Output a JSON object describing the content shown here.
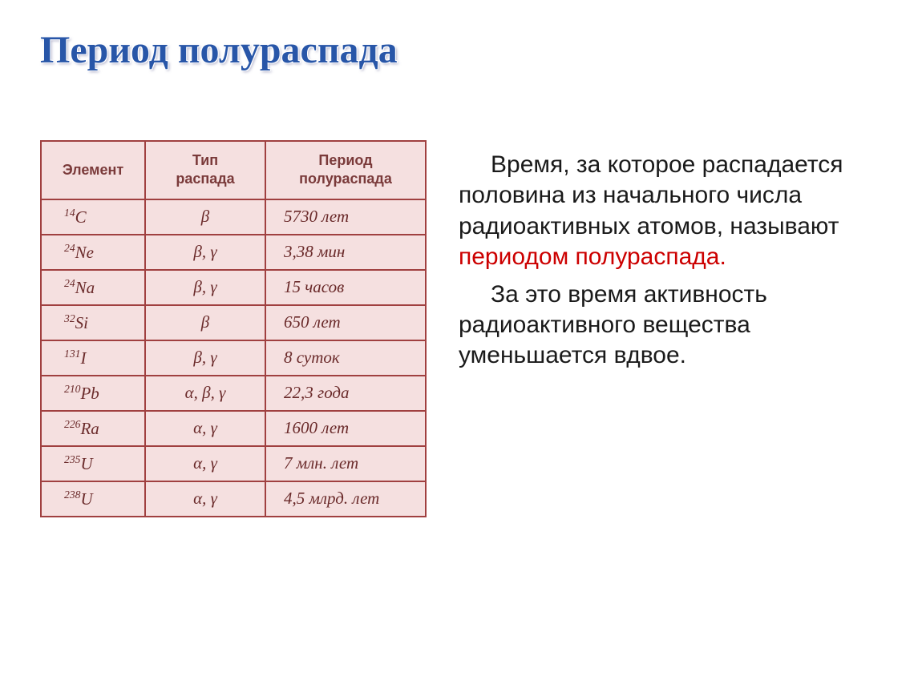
{
  "title": "Период полураспада",
  "table": {
    "columns": [
      "Элемент",
      "Тип\nраспада",
      "Период\nполураспада"
    ],
    "rows": [
      {
        "mass": "14",
        "sym": "C",
        "decay": "β",
        "period": "5730 лет"
      },
      {
        "mass": "24",
        "sym": "Ne",
        "decay": "β, γ",
        "period": "3,38 мин"
      },
      {
        "mass": "24",
        "sym": "Na",
        "decay": "β, γ",
        "period": "15 часов"
      },
      {
        "mass": "32",
        "sym": "Si",
        "decay": "β",
        "period": "650 лет"
      },
      {
        "mass": "131",
        "sym": "I",
        "decay": "β, γ",
        "period": "8 суток"
      },
      {
        "mass": "210",
        "sym": "Pb",
        "decay": "α, β, γ",
        "period": "22,3 года"
      },
      {
        "mass": "226",
        "sym": "Ra",
        "decay": "α, γ",
        "period": "1600 лет"
      },
      {
        "mass": "235",
        "sym": "U",
        "decay": "α, γ",
        "period": "7 млн. лет"
      },
      {
        "mass": "238",
        "sym": "U",
        "decay": "α, γ",
        "period": "4,5 млрд. лет"
      }
    ],
    "header_bg": "#f5e0e0",
    "cell_bg": "#f5e0e0",
    "border_color": "#a04040",
    "text_color": "#6a2a2a",
    "font_italic": true
  },
  "text": {
    "p1_pre": "Время, за которое распадается половина из начального числа радиоактивных атомов, называют",
    "p1_hl": " периодом полураспада.",
    "p2": "За это время активность радиоактивного вещества уменьшается вдвое."
  },
  "colors": {
    "title": "#2856a8",
    "highlight": "#cc0000",
    "body_text": "#1a1a1a",
    "background": "#ffffff"
  },
  "fonts": {
    "title_size": 48,
    "body_size": 30,
    "table_cell_size": 21,
    "table_header_size": 18
  }
}
